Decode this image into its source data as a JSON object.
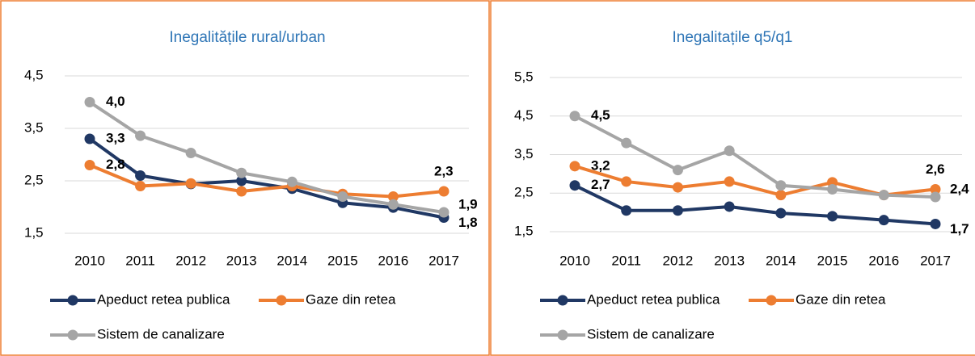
{
  "chart_data": [
    {
      "type": "line",
      "title": "Inegalitățile rural/urban",
      "categories": [
        "2010",
        "2011",
        "2012",
        "2013",
        "2014",
        "2015",
        "2016",
        "2017"
      ],
      "ylim": [
        1.5,
        4.5
      ],
      "yticks": [
        {
          "value": 1.5,
          "label": "1,5"
        },
        {
          "value": 2.5,
          "label": "2,5"
        },
        {
          "value": 3.5,
          "label": "3,5"
        },
        {
          "value": 4.5,
          "label": "4,5"
        }
      ],
      "grid": true,
      "series": [
        {
          "name": "Apeduct retea publica",
          "color": "#203864",
          "values": [
            3.3,
            2.6,
            2.44,
            2.5,
            2.35,
            2.08,
            1.99,
            1.8
          ],
          "value_labels": [
            "3,3",
            null,
            null,
            null,
            null,
            null,
            null,
            "1,8"
          ]
        },
        {
          "name": "Gaze din retea",
          "color": "#ED7D31",
          "values": [
            2.8,
            2.4,
            2.45,
            2.3,
            2.4,
            2.25,
            2.2,
            2.3
          ],
          "value_labels": [
            "2,8",
            null,
            null,
            null,
            null,
            null,
            null,
            "2,3"
          ]
        },
        {
          "name": "Sistem de canalizare",
          "color": "#A5A5A5",
          "values": [
            4.0,
            3.36,
            3.03,
            2.65,
            2.48,
            2.2,
            2.05,
            1.9
          ],
          "value_labels": [
            "4,0",
            null,
            null,
            null,
            null,
            null,
            null,
            "1,9"
          ]
        }
      ]
    },
    {
      "type": "line",
      "title": "Inegalitațile q5/q1",
      "categories": [
        "2010",
        "2011",
        "2012",
        "2013",
        "2014",
        "2015",
        "2016",
        "2017"
      ],
      "ylim": [
        1.5,
        5.5
      ],
      "yticks": [
        {
          "value": 1.5,
          "label": "1,5"
        },
        {
          "value": 2.5,
          "label": "2,5"
        },
        {
          "value": 3.5,
          "label": "3,5"
        },
        {
          "value": 4.5,
          "label": "4,5"
        },
        {
          "value": 5.5,
          "label": "5,5"
        }
      ],
      "grid": true,
      "series": [
        {
          "name": "Apeduct retea publica",
          "color": "#203864",
          "values": [
            2.7,
            2.05,
            2.05,
            2.15,
            1.98,
            1.9,
            1.8,
            1.7
          ],
          "value_labels": [
            "2,7",
            null,
            null,
            null,
            null,
            null,
            null,
            "1,7"
          ]
        },
        {
          "name": "Gaze din retea",
          "color": "#ED7D31",
          "values": [
            3.2,
            2.8,
            2.65,
            2.8,
            2.45,
            2.78,
            2.45,
            2.6
          ],
          "value_labels": [
            "3,2",
            null,
            null,
            null,
            null,
            null,
            null,
            "2,6"
          ]
        },
        {
          "name": "Sistem de canalizare",
          "color": "#A5A5A5",
          "values": [
            4.5,
            3.8,
            3.1,
            3.6,
            2.7,
            2.6,
            2.45,
            2.4
          ],
          "value_labels": [
            "4,5",
            null,
            null,
            null,
            null,
            null,
            null,
            "2,4"
          ]
        }
      ]
    }
  ]
}
